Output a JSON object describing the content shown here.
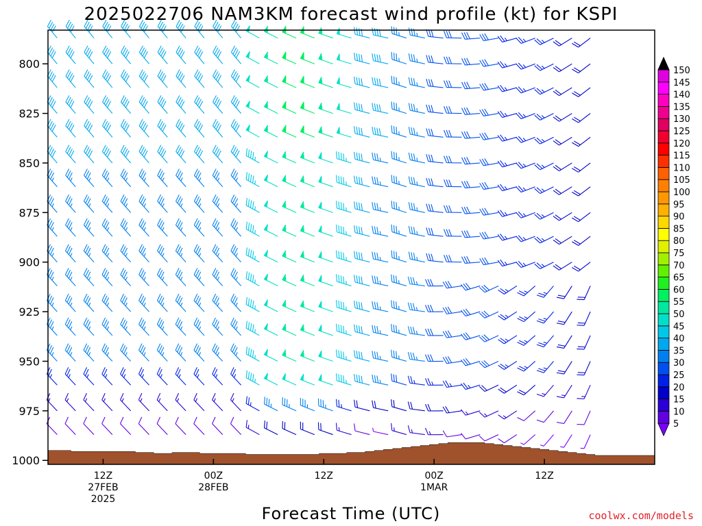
{
  "chart_data": {
    "type": "wind_barbs",
    "title": "2025022706 NAM3KM forecast wind profile (kt) for KSPI",
    "xlabel": "Forecast Time (UTC)",
    "ylabel": "",
    "credit": "coolwx.com/models",
    "y_axis": {
      "ticks": [
        800,
        825,
        850,
        875,
        900,
        925,
        950,
        975,
        1000
      ],
      "range": [
        1002,
        783
      ],
      "reversed": true
    },
    "x_axis": {
      "start": "2025-02-27T06:00Z",
      "end": "2025-03-02T00:00Z",
      "ticks": [
        {
          "label": "12Z",
          "sub1": "27FEB",
          "sub2": "2025",
          "time": "2025-02-27T12:00Z"
        },
        {
          "label": "00Z",
          "sub1": "28FEB",
          "sub2": "",
          "time": "2025-02-28T00:00Z"
        },
        {
          "label": "12Z",
          "sub1": "",
          "sub2": "",
          "time": "2025-02-28T12:00Z"
        },
        {
          "label": "00Z",
          "sub1": "1MAR",
          "sub2": "",
          "time": "2025-03-01T00:00Z"
        },
        {
          "label": "12Z",
          "sub1": "",
          "sub2": "",
          "time": "2025-03-01T12:00Z"
        }
      ]
    },
    "forecast_hours": [
      0,
      1,
      2,
      3,
      4,
      5,
      6,
      7,
      8,
      9,
      10,
      11,
      12,
      13,
      14,
      15,
      16,
      17,
      18,
      19,
      20,
      21,
      22,
      23,
      24,
      25,
      26,
      27,
      28,
      29,
      30,
      31,
      32,
      33,
      34,
      35,
      36,
      37,
      38,
      39,
      40,
      41,
      42,
      43,
      44,
      45,
      46,
      47,
      48,
      49,
      50,
      51,
      52,
      53,
      54,
      55,
      56,
      57,
      58,
      59,
      60
    ],
    "barb_hours": [
      1,
      3,
      5,
      7,
      9,
      11,
      13,
      15,
      17,
      19,
      21,
      23,
      25,
      27,
      29,
      31,
      33,
      35,
      37,
      39,
      41,
      43,
      45,
      47,
      49,
      51,
      53,
      55,
      57,
      59
    ],
    "pressure_levels": [
      787,
      800,
      812,
      825,
      837,
      850,
      862,
      875,
      887,
      900,
      912,
      925,
      937,
      950,
      962,
      975,
      987
    ],
    "wind_description": "Northwesterly flow 30-45 kt early, strengthening to 45-55 kt near forecast hour 28 at 850-950 hPa, becoming westerly to west-southwesterly 15-30 kt near the surface late in the period",
    "surface_pressure": [
      995,
      995,
      995,
      995.5,
      995.5,
      995.5,
      995.5,
      995.5,
      995.5,
      995.5,
      996,
      996,
      996.5,
      996.5,
      996,
      996,
      996,
      996.5,
      996.5,
      996.5,
      996.5,
      996.5,
      997,
      997,
      997,
      997,
      997,
      997,
      997,
      997,
      996.5,
      996.5,
      996.5,
      996,
      996,
      995.5,
      995,
      994.5,
      994,
      993.5,
      993,
      992.5,
      992,
      991.5,
      991,
      991,
      991,
      991,
      991.5,
      992,
      992.5,
      993,
      993.5,
      994,
      994.5,
      995,
      995.5,
      996,
      996.5,
      997,
      997.5
    ],
    "colorbar": {
      "label_values": [
        5,
        10,
        15,
        20,
        25,
        30,
        35,
        40,
        45,
        50,
        55,
        60,
        65,
        70,
        75,
        80,
        85,
        90,
        95,
        100,
        105,
        110,
        115,
        120,
        125,
        130,
        135,
        140,
        145,
        150
      ],
      "colors": [
        "#7b00ff",
        "#6100e0",
        "#2a00d4",
        "#0000c8",
        "#0020e6",
        "#0050f0",
        "#0080f0",
        "#00a8f0",
        "#00c8e8",
        "#00e0c8",
        "#00e8a0",
        "#00f060",
        "#20f020",
        "#60f000",
        "#a0f000",
        "#e0f000",
        "#ffff00",
        "#ffd800",
        "#ffb000",
        "#ff9800",
        "#ff8000",
        "#ff6000",
        "#ff3000",
        "#ff0000",
        "#f00030",
        "#e00060",
        "#f00090",
        "#ff00c0",
        "#ff00ff",
        "#e000e0"
      ],
      "extend": "both"
    },
    "terrain_color": "#a0522d",
    "grid": false
  }
}
